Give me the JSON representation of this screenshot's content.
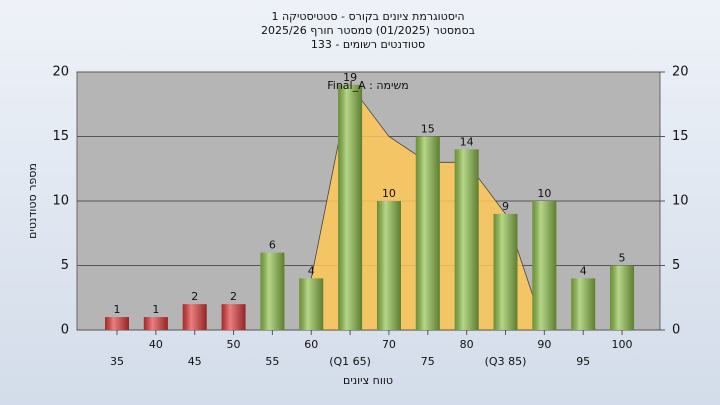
{
  "chart_data": {
    "type": "bar",
    "title_lines": [
      "היסטוגרמת ציונים בקורס - סטטיסטיקה 1",
      "בסמסטר (01/2025) סמסטר חורף 2025/26",
      "סטודנטים רשומים - 133"
    ],
    "annotation": "משימה : Final_A",
    "x_label": "טווח ציונים",
    "y_label": "מספר סטודנטים",
    "categories": [
      "35",
      "40",
      "45",
      "50",
      "55",
      "60",
      "(Q1 65)",
      "70",
      "75",
      "80",
      "(Q3 85)",
      "90",
      "95",
      "100"
    ],
    "values": [
      1,
      1,
      2,
      2,
      6,
      4,
      19,
      10,
      15,
      14,
      9,
      10,
      4,
      5
    ],
    "colors": [
      "#e03a3a",
      "#e03a3a",
      "#e03a3a",
      "#e03a3a",
      "#8fc04a",
      "#8fc04a",
      "#8fc04a",
      "#8fc04a",
      "#8fc04a",
      "#8fc04a",
      "#8fc04a",
      "#8fc04a",
      "#8fc04a",
      "#8fc04a"
    ],
    "shade": {
      "color": "#ffc857",
      "values": [
        null,
        null,
        null,
        null,
        null,
        4,
        19,
        15,
        13,
        13,
        9,
        0,
        null,
        null
      ]
    },
    "ylim": [
      0,
      20
    ],
    "yticks": [
      0,
      5,
      10,
      15,
      20
    ],
    "y2lim": [
      0,
      20
    ],
    "y2ticks": [
      0,
      5,
      10,
      15,
      20
    ],
    "grid": true
  }
}
